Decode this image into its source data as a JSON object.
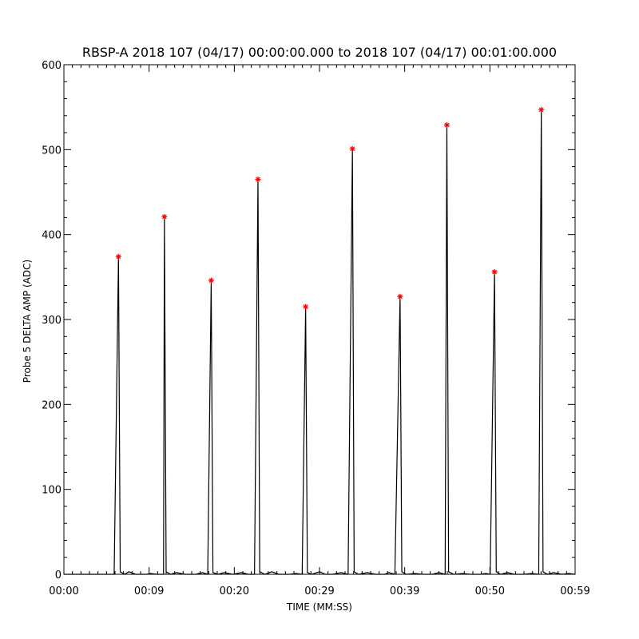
{
  "chart_data": {
    "type": "line",
    "title": "RBSP-A 2018 107 (04/17) 00:00:00.000 to 2018 107 (04/17) 00:01:00.000",
    "xlabel": "TIME (MM:SS)",
    "ylabel": "Probe 5 DELTA AMP (ADC)",
    "xlim": [
      0,
      59
    ],
    "ylim": [
      0,
      600
    ],
    "x_unit": "seconds",
    "x_tick_labels": [
      "00:00",
      "00:09",
      "00:20",
      "00:29",
      "00:39",
      "00:50",
      "00:59"
    ],
    "y_tick_labels": [
      "0",
      "100",
      "200",
      "300",
      "400",
      "500",
      "600"
    ],
    "grid": false,
    "series_color": "#000000",
    "marker_color": "#ff0000",
    "marker_symbol": "asterisk",
    "series": [
      {
        "values": [
          [
            0,
            0
          ],
          [
            5.8,
            0
          ],
          [
            6.3,
            374
          ],
          [
            6.5,
            3
          ],
          [
            7.0,
            0
          ],
          [
            7.5,
            3
          ],
          [
            8.3,
            0
          ],
          [
            9.5,
            0
          ],
          [
            10.0,
            1
          ],
          [
            10.8,
            0
          ],
          [
            11.5,
            0
          ],
          [
            11.6,
            421
          ],
          [
            11.8,
            3
          ],
          [
            12.3,
            0
          ],
          [
            13.0,
            2
          ],
          [
            14.0,
            0
          ],
          [
            15.2,
            0
          ],
          [
            16.0,
            2
          ],
          [
            16.6,
            0
          ],
          [
            17.0,
            346
          ],
          [
            17.2,
            2
          ],
          [
            17.8,
            0
          ],
          [
            18.5,
            2
          ],
          [
            19.5,
            0
          ],
          [
            20.5,
            2
          ],
          [
            21.3,
            0
          ],
          [
            22.0,
            0
          ],
          [
            22.4,
            465
          ],
          [
            22.6,
            3
          ],
          [
            23.2,
            0
          ],
          [
            24.0,
            3
          ],
          [
            24.8,
            0
          ],
          [
            26.0,
            0
          ],
          [
            26.8,
            1
          ],
          [
            27.5,
            0
          ],
          [
            27.9,
            315
          ],
          [
            28.1,
            2
          ],
          [
            28.6,
            0
          ],
          [
            29.5,
            3
          ],
          [
            30.2,
            0
          ],
          [
            31.0,
            0
          ],
          [
            32.0,
            2
          ],
          [
            32.8,
            0
          ],
          [
            33.3,
            501
          ],
          [
            33.5,
            3
          ],
          [
            34.0,
            0
          ],
          [
            35.0,
            2
          ],
          [
            36.0,
            0
          ],
          [
            37.0,
            0
          ],
          [
            37.5,
            2
          ],
          [
            38.2,
            0
          ],
          [
            38.8,
            327
          ],
          [
            39.0,
            3
          ],
          [
            39.5,
            0
          ],
          [
            40.5,
            1
          ],
          [
            41.5,
            0
          ],
          [
            42.5,
            0
          ],
          [
            43.3,
            2
          ],
          [
            44.0,
            0
          ],
          [
            44.2,
            529
          ],
          [
            44.4,
            3
          ],
          [
            45.0,
            0
          ],
          [
            46.0,
            1
          ],
          [
            47.0,
            0
          ],
          [
            48.0,
            0
          ],
          [
            48.7,
            1
          ],
          [
            49.2,
            0
          ],
          [
            49.7,
            356
          ],
          [
            49.9,
            3
          ],
          [
            50.4,
            0
          ],
          [
            51.2,
            2
          ],
          [
            52.0,
            0
          ],
          [
            53.0,
            0
          ],
          [
            54.0,
            1
          ],
          [
            54.8,
            0
          ],
          [
            55.1,
            547
          ],
          [
            55.3,
            3
          ],
          [
            55.8,
            0
          ],
          [
            56.5,
            2
          ],
          [
            57.5,
            0
          ],
          [
            58.3,
            1
          ],
          [
            59,
            0
          ]
        ]
      }
    ],
    "peak_markers": [
      [
        6.3,
        374
      ],
      [
        11.6,
        421
      ],
      [
        17.0,
        346
      ],
      [
        22.4,
        465
      ],
      [
        27.9,
        315
      ],
      [
        33.3,
        501
      ],
      [
        38.8,
        327
      ],
      [
        44.2,
        529
      ],
      [
        49.7,
        356
      ],
      [
        55.1,
        547
      ]
    ]
  }
}
